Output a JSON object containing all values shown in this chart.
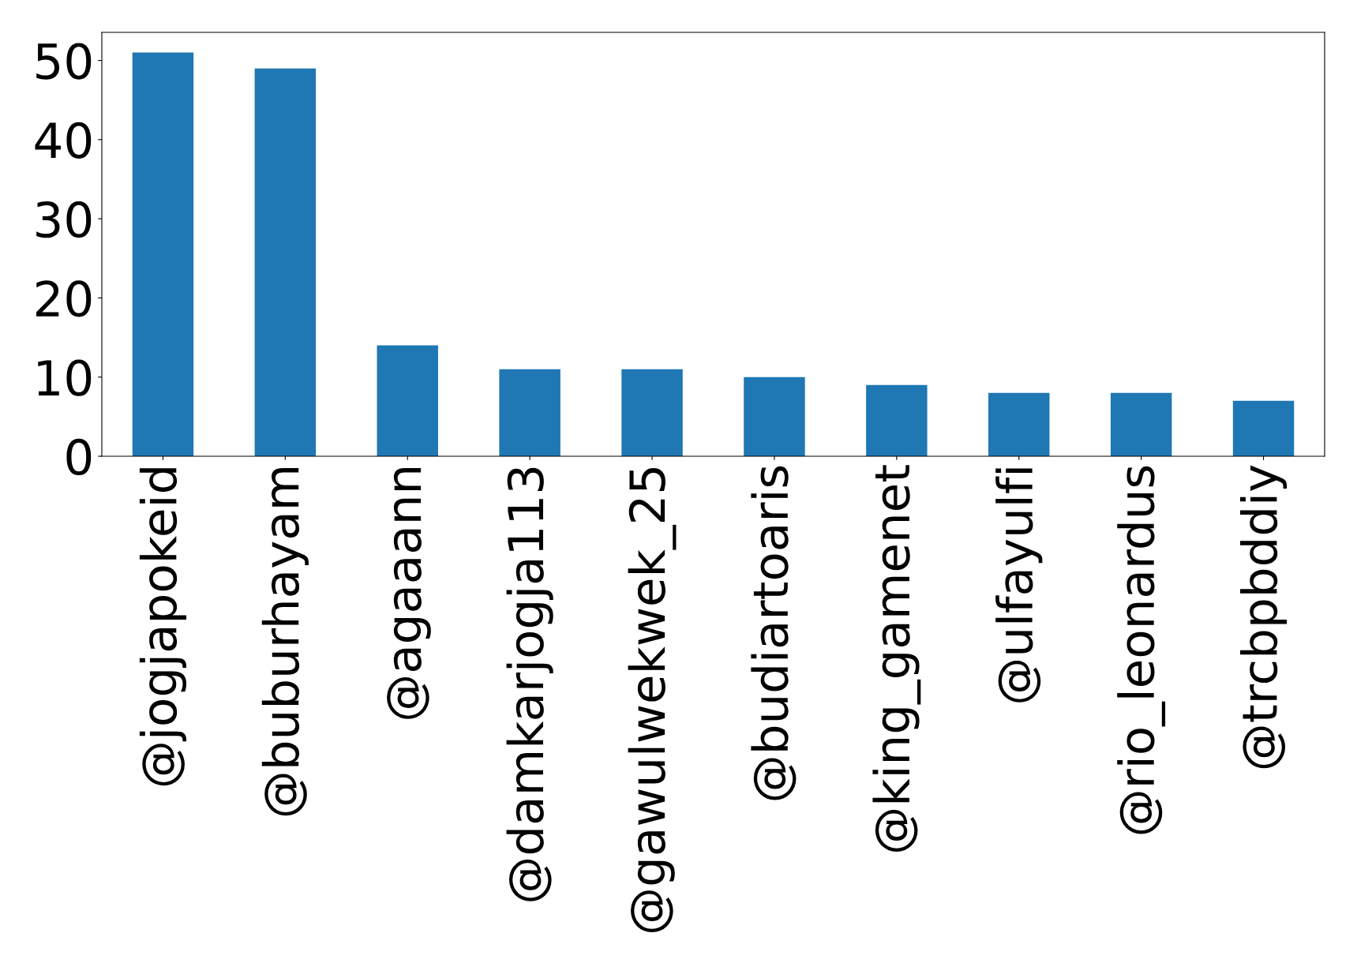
{
  "chart_data": {
    "type": "bar",
    "categories": [
      "@jogjapokeid",
      "@buburhayam",
      "@agaaann",
      "@damkarjogja113",
      "@gawulwekwek_25",
      "@budiartoaris",
      "@king_gamenet",
      "@ulfayulfi",
      "@rio_leonardus",
      "@trcbpbddiy"
    ],
    "values": [
      51,
      49,
      14,
      11,
      11,
      10,
      9,
      8,
      8,
      7
    ],
    "color": "#1f77b4",
    "ylim": [
      0,
      53.55
    ],
    "yticks": [
      0,
      10,
      20,
      30,
      40,
      50
    ],
    "grid": false,
    "legend": false
  }
}
